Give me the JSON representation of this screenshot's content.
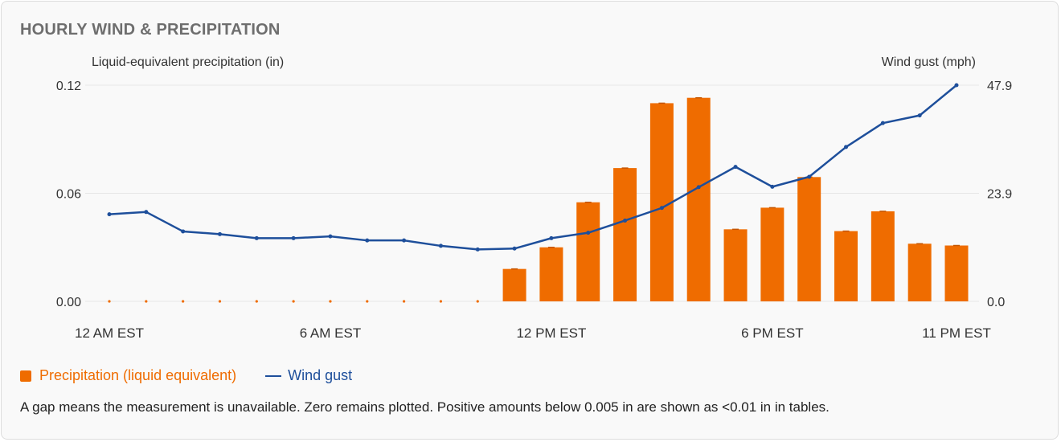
{
  "title": "HOURLY WIND & PRECIPITATION",
  "colors": {
    "precip": "#ef6c00",
    "gust": "#1e4f9b",
    "grid": "#e6e6e6",
    "text": "#333333"
  },
  "legend": {
    "precip_label": "Precipitation (liquid equivalent)",
    "gust_label": "Wind gust"
  },
  "note": "A gap means the measurement is unavailable. Zero remains plotted. Positive amounts below 0.005 in are shown as <0.01 in in tables.",
  "chart_data": {
    "type": "bar+line",
    "left_axis_label": "Liquid-equivalent precipitation (in)",
    "right_axis_label": "Wind gust (mph)",
    "left_ticks": [
      "0.00",
      "0.06",
      "0.12"
    ],
    "right_ticks": [
      "0.0",
      "23.9",
      "47.9"
    ],
    "ylim_left": [
      0,
      0.12
    ],
    "ylim_right": [
      0,
      47.9
    ],
    "x_tick_labels": [
      {
        "hour": 0,
        "label": "12 AM EST"
      },
      {
        "hour": 6,
        "label": "6 AM EST"
      },
      {
        "hour": 12,
        "label": "12 PM EST"
      },
      {
        "hour": 18,
        "label": "6 PM EST"
      },
      {
        "hour": 23,
        "label": "11 PM EST"
      }
    ],
    "hours": [
      0,
      1,
      2,
      3,
      4,
      5,
      6,
      7,
      8,
      9,
      10,
      11,
      12,
      13,
      14,
      15,
      16,
      17,
      18,
      19,
      20,
      21,
      22,
      23
    ],
    "series": [
      {
        "name": "Precipitation (liquid equivalent)",
        "kind": "bar",
        "axis": "left",
        "values": [
          0,
          0,
          0,
          0,
          0,
          0,
          0,
          0,
          0,
          0,
          0,
          0.018,
          0.03,
          0.055,
          0.074,
          0.11,
          0.113,
          0.04,
          0.052,
          0.069,
          0.039,
          0.05,
          0.032,
          0.031
        ]
      },
      {
        "name": "Wind gust",
        "kind": "line",
        "axis": "right",
        "values": [
          19.3,
          19.8,
          15.5,
          14.9,
          14.0,
          14.0,
          14.4,
          13.5,
          13.5,
          12.3,
          11.5,
          11.7,
          14.0,
          15.2,
          17.9,
          20.7,
          25.3,
          29.8,
          25.4,
          27.6,
          34.2,
          39.5,
          41.2,
          47.9
        ]
      }
    ]
  }
}
